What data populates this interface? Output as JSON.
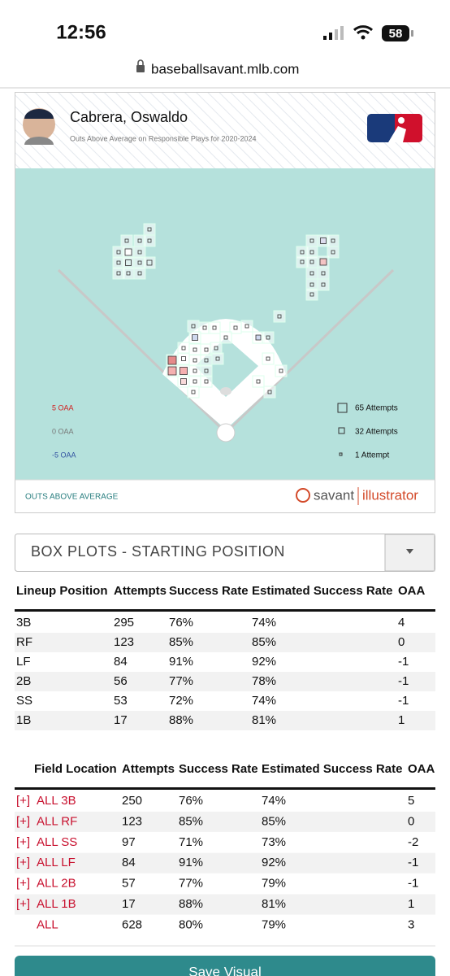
{
  "status_bar": {
    "time": "12:56",
    "battery": "58"
  },
  "url": "baseballsavant.mlb.com",
  "player": {
    "name": "Cabrera, Oswaldo",
    "subtitle": "Outs Above Average on Responsible Plays for 2020-2024"
  },
  "legend": {
    "oaa": [
      "5 OAA",
      "0 OAA",
      "-5 OAA"
    ],
    "attempts": [
      "65 Attempts",
      "32 Attempts",
      "1 Attempt"
    ]
  },
  "footer": {
    "label": "OUTS ABOVE AVERAGE",
    "brand_left": "savant",
    "brand_right": "illustrator"
  },
  "dropdown": {
    "label": "BOX PLOTS - STARTING POSITION"
  },
  "table1": {
    "columns": [
      "Lineup Position",
      "Attempts",
      "Success Rate",
      "Estimated Success Rate",
      "OAA"
    ],
    "rows": [
      [
        "3B",
        "295",
        "76%",
        "74%",
        "4"
      ],
      [
        "RF",
        "123",
        "85%",
        "85%",
        "0"
      ],
      [
        "LF",
        "84",
        "91%",
        "92%",
        "-1"
      ],
      [
        "2B",
        "56",
        "77%",
        "78%",
        "-1"
      ],
      [
        "SS",
        "53",
        "72%",
        "74%",
        "-1"
      ],
      [
        "1B",
        "17",
        "88%",
        "81%",
        "1"
      ]
    ]
  },
  "table2": {
    "columns": [
      "Field Location",
      "Attempts",
      "Success Rate",
      "Estimated Success Rate",
      "OAA"
    ],
    "rows": [
      {
        "toggle": "[+]",
        "cells": [
          "ALL 3B",
          "250",
          "76%",
          "74%",
          "5"
        ]
      },
      {
        "toggle": "[+]",
        "cells": [
          "ALL RF",
          "123",
          "85%",
          "85%",
          "0"
        ]
      },
      {
        "toggle": "[+]",
        "cells": [
          "ALL SS",
          "97",
          "71%",
          "73%",
          "-2"
        ]
      },
      {
        "toggle": "[+]",
        "cells": [
          "ALL LF",
          "84",
          "91%",
          "92%",
          "-1"
        ]
      },
      {
        "toggle": "[+]",
        "cells": [
          "ALL 2B",
          "57",
          "77%",
          "79%",
          "-1"
        ]
      },
      {
        "toggle": "[+]",
        "cells": [
          "ALL 1B",
          "17",
          "88%",
          "81%",
          "1"
        ]
      },
      {
        "cells": [
          "ALL",
          "628",
          "80%",
          "79%",
          "3"
        ]
      }
    ]
  },
  "button": "Save Visual"
}
